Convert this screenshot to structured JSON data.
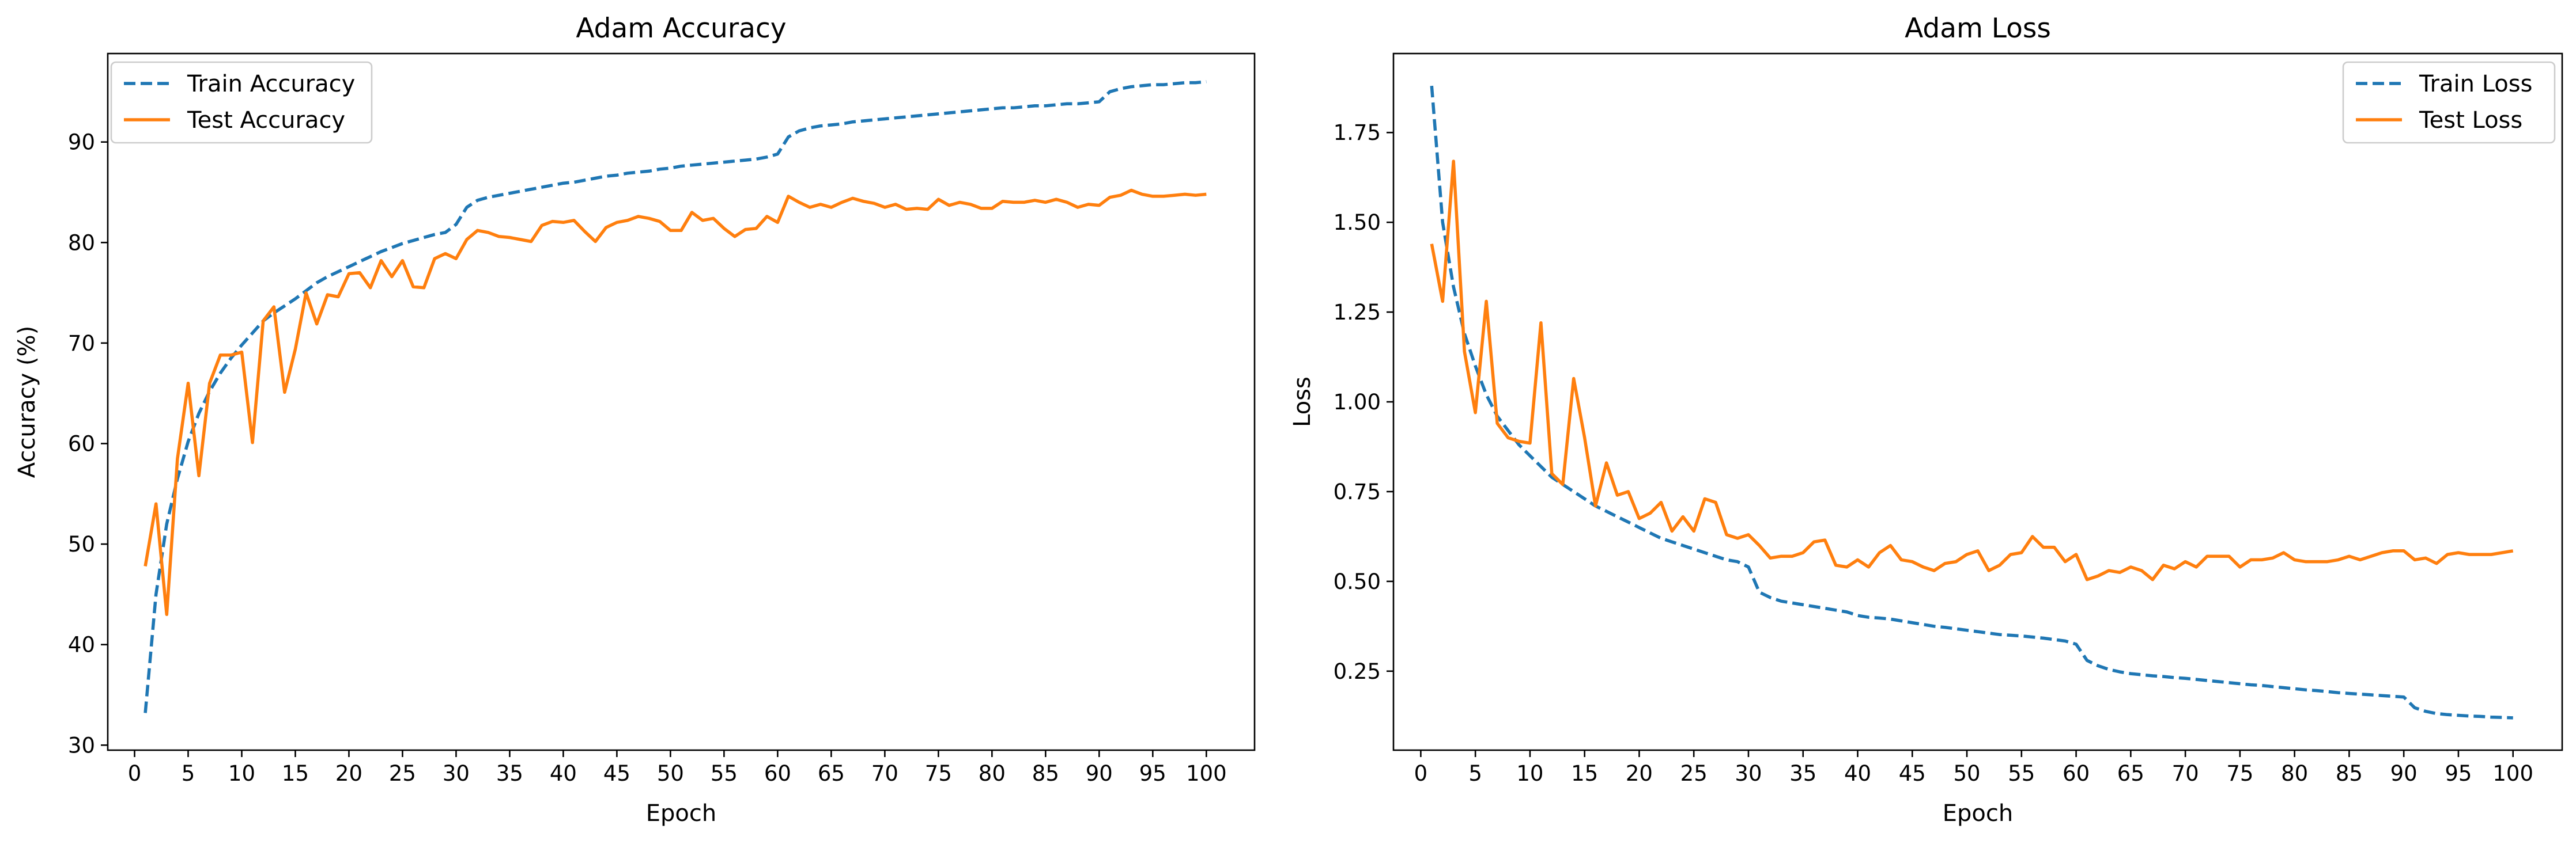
{
  "chart_data": [
    {
      "type": "line",
      "title": "Adam Accuracy",
      "xlabel": "Epoch",
      "ylabel": "Accuracy (%)",
      "xlim": [
        -2.5,
        104.5
      ],
      "ylim": [
        29.5,
        98.8
      ],
      "xticks": [
        0,
        5,
        10,
        15,
        20,
        25,
        30,
        35,
        40,
        45,
        50,
        55,
        60,
        65,
        70,
        75,
        80,
        85,
        90,
        95,
        100
      ],
      "yticks": [
        30,
        40,
        50,
        60,
        70,
        80,
        90
      ],
      "grid": false,
      "legend_position": "upper-left",
      "x": [
        1,
        2,
        3,
        4,
        5,
        6,
        7,
        8,
        9,
        10,
        11,
        12,
        13,
        14,
        15,
        16,
        17,
        18,
        19,
        20,
        21,
        22,
        23,
        24,
        25,
        26,
        27,
        28,
        29,
        30,
        31,
        32,
        33,
        34,
        35,
        36,
        37,
        38,
        39,
        40,
        41,
        42,
        43,
        44,
        45,
        46,
        47,
        48,
        49,
        50,
        51,
        52,
        53,
        54,
        55,
        56,
        57,
        58,
        59,
        60,
        61,
        62,
        63,
        64,
        65,
        66,
        67,
        68,
        69,
        70,
        71,
        72,
        73,
        74,
        75,
        76,
        77,
        78,
        79,
        80,
        81,
        82,
        83,
        84,
        85,
        86,
        87,
        88,
        89,
        90,
        91,
        92,
        93,
        94,
        95,
        96,
        97,
        98,
        99,
        100
      ],
      "series": [
        {
          "name": "Train Accuracy",
          "color": "#1f77b4",
          "style": "dashed",
          "values": [
            33.2,
            45.0,
            52.0,
            56.5,
            60.2,
            63.0,
            65.2,
            67.0,
            68.5,
            69.8,
            71.0,
            72.2,
            73.0,
            73.7,
            74.4,
            75.2,
            76.0,
            76.6,
            77.1,
            77.6,
            78.1,
            78.6,
            79.1,
            79.5,
            79.9,
            80.2,
            80.5,
            80.8,
            81.0,
            81.8,
            83.5,
            84.2,
            84.5,
            84.7,
            84.9,
            85.1,
            85.3,
            85.5,
            85.7,
            85.9,
            86.0,
            86.2,
            86.4,
            86.6,
            86.7,
            86.9,
            87.0,
            87.1,
            87.3,
            87.4,
            87.6,
            87.7,
            87.8,
            87.9,
            88.0,
            88.1,
            88.2,
            88.3,
            88.5,
            88.8,
            90.5,
            91.1,
            91.4,
            91.6,
            91.7,
            91.8,
            92.0,
            92.1,
            92.2,
            92.3,
            92.4,
            92.5,
            92.6,
            92.7,
            92.8,
            92.9,
            93.0,
            93.1,
            93.2,
            93.3,
            93.4,
            93.4,
            93.5,
            93.6,
            93.6,
            93.7,
            93.8,
            93.8,
            93.9,
            94.0,
            95.0,
            95.3,
            95.5,
            95.6,
            95.7,
            95.7,
            95.8,
            95.9,
            95.9,
            96.0
          ]
        },
        {
          "name": "Test Accuracy",
          "color": "#ff7f0e",
          "style": "solid",
          "values": [
            47.8,
            54.0,
            43.0,
            58.5,
            66.0,
            56.8,
            66.0,
            68.8,
            68.8,
            69.1,
            60.1,
            72.2,
            73.6,
            65.1,
            69.4,
            75.0,
            71.9,
            74.8,
            74.6,
            76.9,
            77.0,
            75.5,
            78.2,
            76.6,
            78.2,
            75.6,
            75.5,
            78.4,
            78.9,
            78.4,
            80.3,
            81.2,
            81.0,
            80.6,
            80.5,
            80.3,
            80.1,
            81.7,
            82.1,
            82.0,
            82.2,
            81.1,
            80.1,
            81.5,
            82.0,
            82.2,
            82.6,
            82.4,
            82.1,
            81.2,
            81.2,
            83.0,
            82.2,
            82.4,
            81.4,
            80.6,
            81.3,
            81.4,
            82.6,
            82.0,
            84.6,
            84.0,
            83.5,
            83.8,
            83.5,
            84.0,
            84.4,
            84.1,
            83.9,
            83.5,
            83.8,
            83.3,
            83.4,
            83.3,
            84.3,
            83.7,
            84.0,
            83.8,
            83.4,
            83.4,
            84.1,
            84.0,
            84.0,
            84.2,
            84.0,
            84.3,
            84.0,
            83.5,
            83.8,
            83.7,
            84.5,
            84.7,
            85.2,
            84.8,
            84.6,
            84.6,
            84.7,
            84.8,
            84.7,
            84.8
          ]
        }
      ]
    },
    {
      "type": "line",
      "title": "Adam Loss",
      "xlabel": "Epoch",
      "ylabel": "Loss",
      "xlim": [
        -2.5,
        104.5
      ],
      "ylim": [
        0.03,
        1.97
      ],
      "xticks": [
        0,
        5,
        10,
        15,
        20,
        25,
        30,
        35,
        40,
        45,
        50,
        55,
        60,
        65,
        70,
        75,
        80,
        85,
        90,
        95,
        100
      ],
      "yticks": [
        "0.25",
        "0.50",
        "0.75",
        "1.00",
        "1.25",
        "1.50",
        "1.75"
      ],
      "grid": false,
      "legend_position": "upper-right",
      "x": [
        1,
        2,
        3,
        4,
        5,
        6,
        7,
        8,
        9,
        10,
        11,
        12,
        13,
        14,
        15,
        16,
        17,
        18,
        19,
        20,
        21,
        22,
        23,
        24,
        25,
        26,
        27,
        28,
        29,
        30,
        31,
        32,
        33,
        34,
        35,
        36,
        37,
        38,
        39,
        40,
        41,
        42,
        43,
        44,
        45,
        46,
        47,
        48,
        49,
        50,
        51,
        52,
        53,
        54,
        55,
        56,
        57,
        58,
        59,
        60,
        61,
        62,
        63,
        64,
        65,
        66,
        67,
        68,
        69,
        70,
        71,
        72,
        73,
        74,
        75,
        76,
        77,
        78,
        79,
        80,
        81,
        82,
        83,
        84,
        85,
        86,
        87,
        88,
        89,
        90,
        91,
        92,
        93,
        94,
        95,
        96,
        97,
        98,
        99,
        100
      ],
      "series": [
        {
          "name": "Train Loss",
          "color": "#1f77b4",
          "style": "dashed",
          "values": [
            1.88,
            1.5,
            1.32,
            1.19,
            1.1,
            1.02,
            0.96,
            0.92,
            0.88,
            0.85,
            0.82,
            0.79,
            0.77,
            0.75,
            0.73,
            0.71,
            0.695,
            0.68,
            0.665,
            0.65,
            0.635,
            0.62,
            0.61,
            0.6,
            0.59,
            0.58,
            0.57,
            0.56,
            0.555,
            0.54,
            0.47,
            0.455,
            0.445,
            0.44,
            0.435,
            0.43,
            0.425,
            0.42,
            0.415,
            0.405,
            0.4,
            0.398,
            0.395,
            0.39,
            0.385,
            0.38,
            0.375,
            0.372,
            0.368,
            0.364,
            0.36,
            0.356,
            0.352,
            0.35,
            0.348,
            0.345,
            0.342,
            0.338,
            0.334,
            0.325,
            0.28,
            0.265,
            0.255,
            0.248,
            0.243,
            0.24,
            0.237,
            0.235,
            0.232,
            0.23,
            0.227,
            0.224,
            0.221,
            0.218,
            0.215,
            0.212,
            0.21,
            0.207,
            0.204,
            0.201,
            0.198,
            0.196,
            0.193,
            0.19,
            0.188,
            0.186,
            0.184,
            0.182,
            0.18,
            0.178,
            0.148,
            0.138,
            0.132,
            0.129,
            0.127,
            0.125,
            0.124,
            0.122,
            0.121,
            0.12
          ]
        },
        {
          "name": "Test Loss",
          "color": "#ff7f0e",
          "style": "solid",
          "values": [
            1.44,
            1.28,
            1.67,
            1.14,
            0.97,
            1.28,
            0.94,
            0.9,
            0.89,
            0.885,
            1.22,
            0.8,
            0.77,
            1.065,
            0.9,
            0.71,
            0.83,
            0.74,
            0.75,
            0.675,
            0.69,
            0.72,
            0.64,
            0.68,
            0.64,
            0.73,
            0.72,
            0.63,
            0.62,
            0.63,
            0.6,
            0.565,
            0.57,
            0.57,
            0.58,
            0.61,
            0.615,
            0.545,
            0.54,
            0.56,
            0.54,
            0.58,
            0.6,
            0.56,
            0.555,
            0.54,
            0.53,
            0.55,
            0.555,
            0.575,
            0.585,
            0.53,
            0.545,
            0.575,
            0.58,
            0.625,
            0.595,
            0.595,
            0.555,
            0.575,
            0.505,
            0.515,
            0.53,
            0.525,
            0.54,
            0.53,
            0.505,
            0.545,
            0.535,
            0.555,
            0.54,
            0.57,
            0.57,
            0.57,
            0.54,
            0.56,
            0.56,
            0.565,
            0.58,
            0.56,
            0.555,
            0.555,
            0.555,
            0.56,
            0.57,
            0.56,
            0.57,
            0.58,
            0.585,
            0.585,
            0.56,
            0.565,
            0.55,
            0.575,
            0.58,
            0.575,
            0.575,
            0.575,
            0.58,
            0.585
          ]
        }
      ]
    }
  ]
}
